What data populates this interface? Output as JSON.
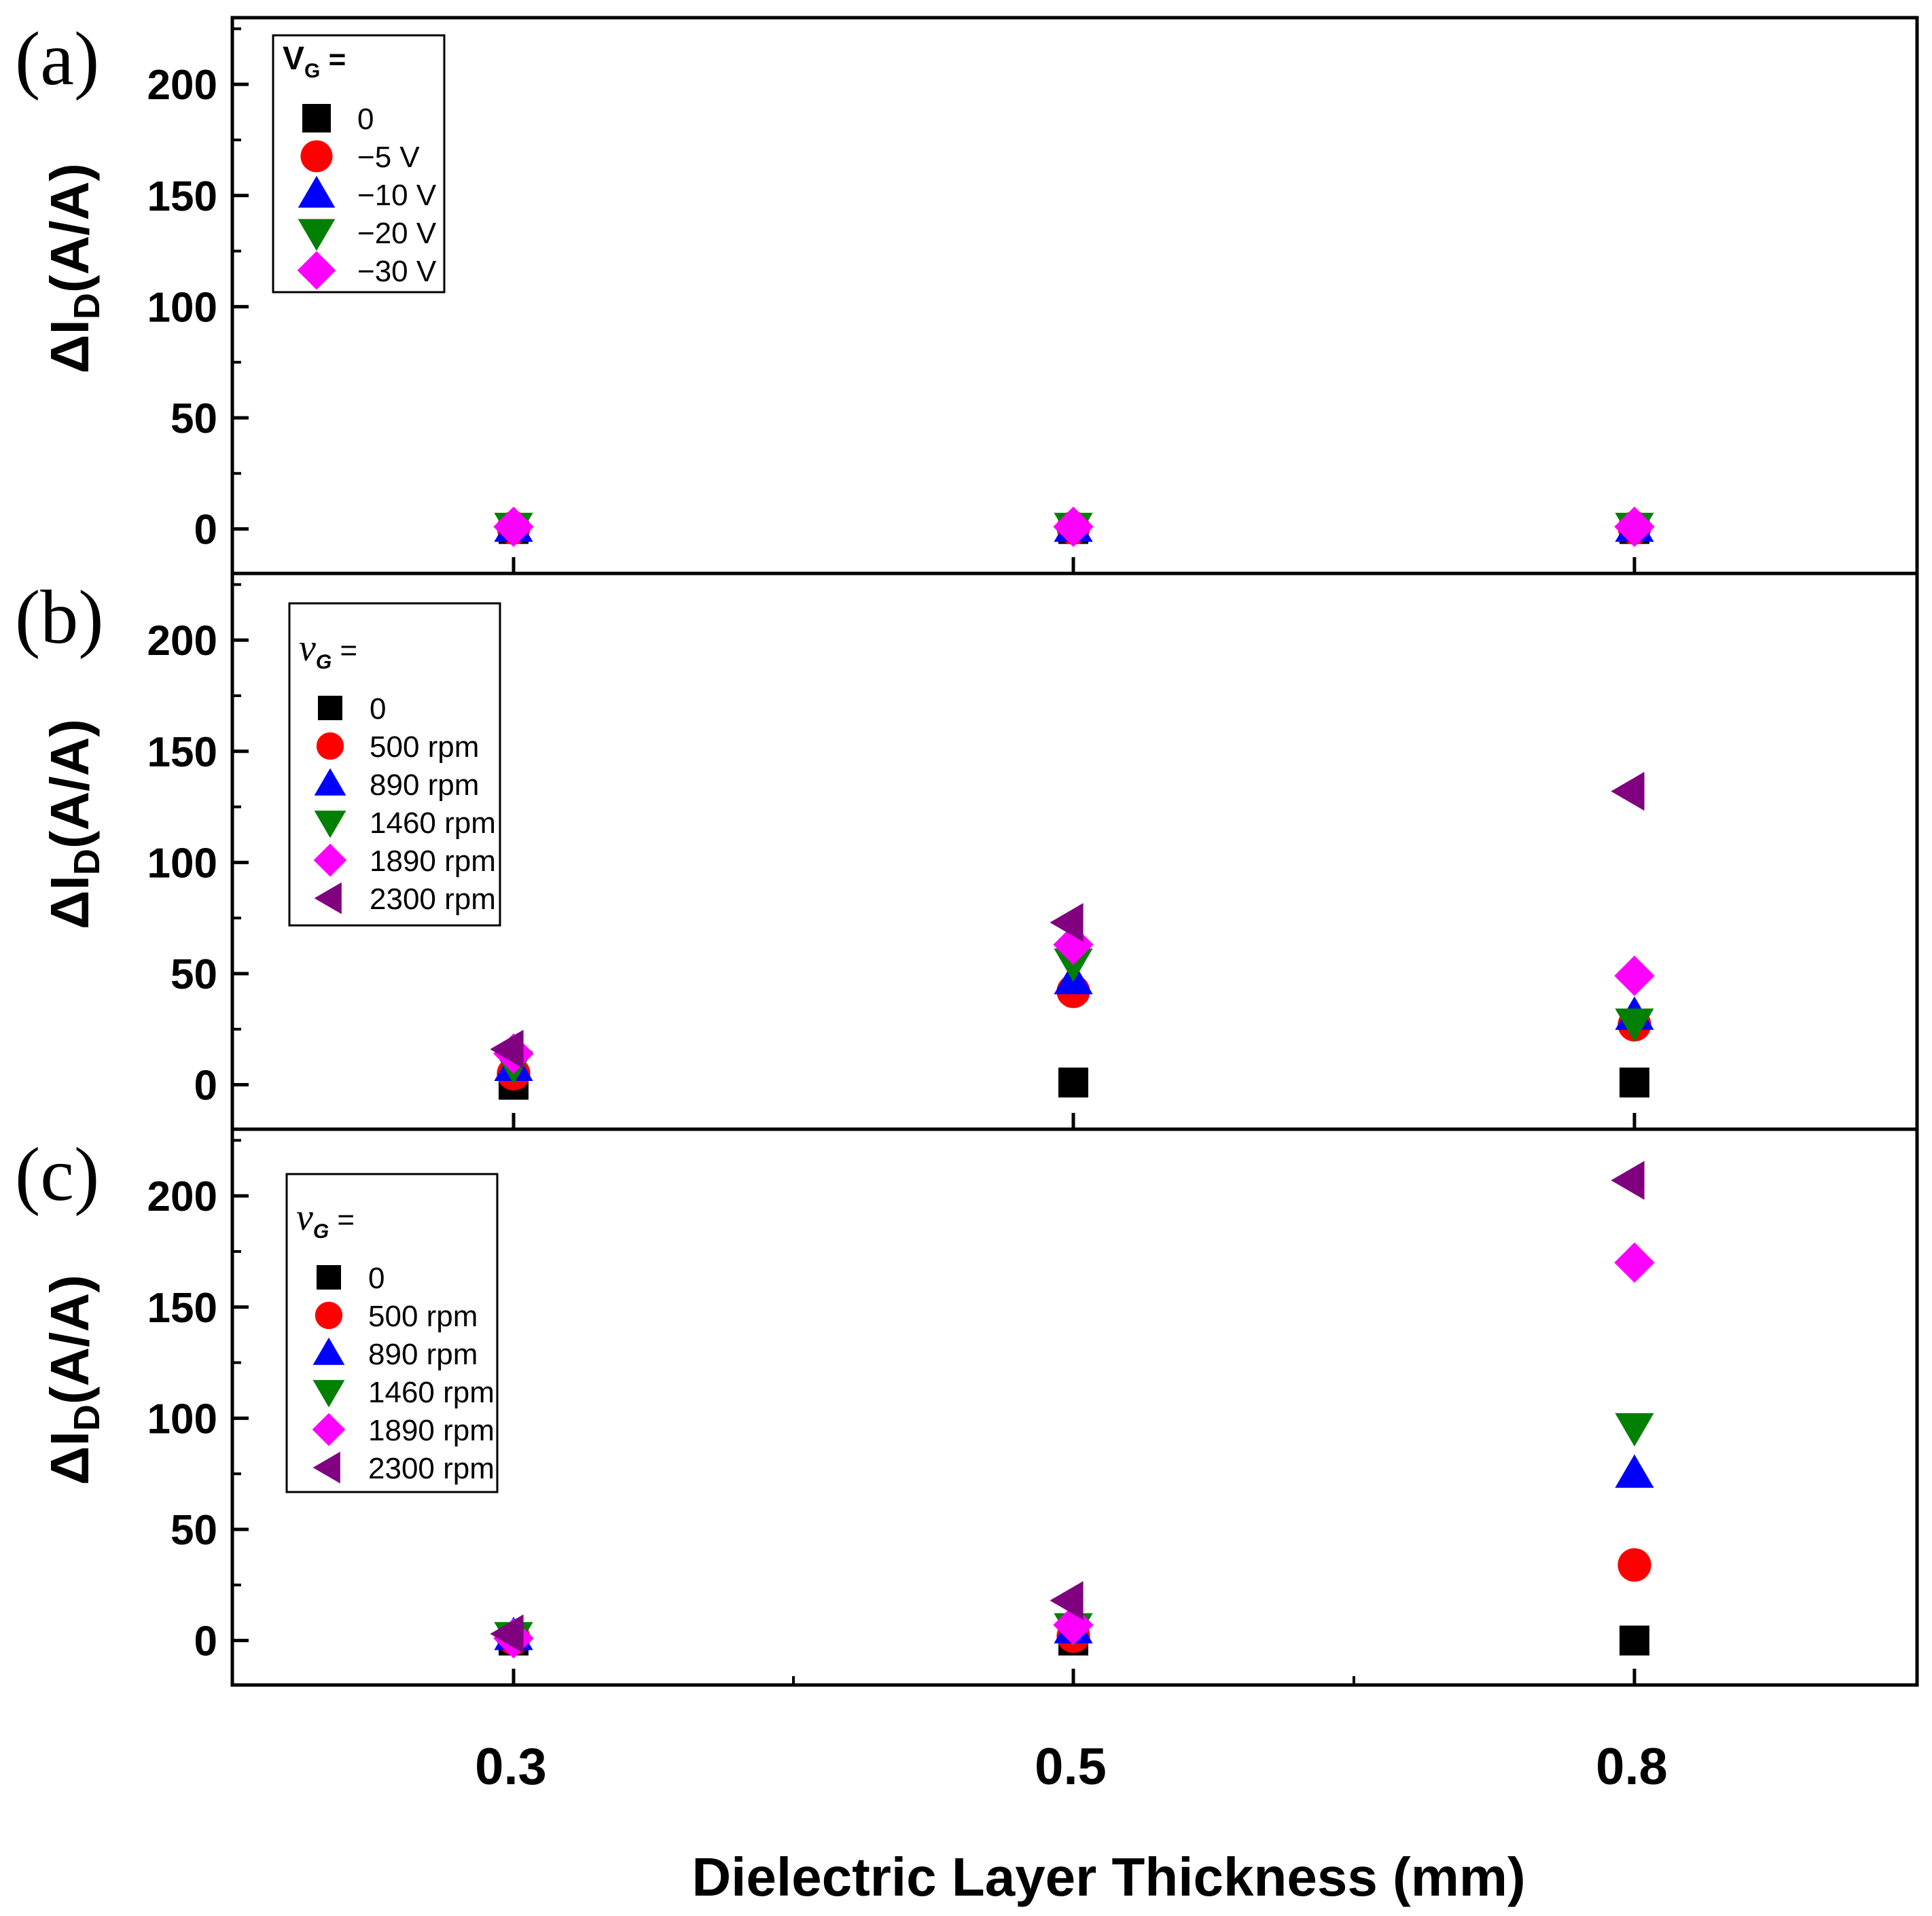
{
  "chart_data": [
    {
      "panel": "(a)",
      "type": "scatter",
      "xlabel": "",
      "ylabel": "ΔI",
      "ylabel_sub": "D",
      "ylabel_unit": "(A/A)",
      "ylim": [
        -20,
        230
      ],
      "yticks": [
        0,
        50,
        100,
        150,
        200
      ],
      "ytick_labels": [
        "0",
        "50",
        "100",
        "150",
        "200"
      ],
      "categories": [
        "0.3",
        "0.5",
        "0.8"
      ],
      "legend": {
        "title_main": "V",
        "title_sub": "G",
        "title_suffix": " =",
        "title_style": "upright",
        "placement": "top-left"
      },
      "series": [
        {
          "name": "0",
          "marker": "square",
          "color": "#000000",
          "values": [
            0,
            0,
            0
          ]
        },
        {
          "name": "−5 V",
          "marker": "circle",
          "color": "#ff0000",
          "values": [
            0.5,
            0.5,
            0.5
          ]
        },
        {
          "name": "−10 V",
          "marker": "triangle-up",
          "color": "#0000ff",
          "values": [
            0.5,
            0.5,
            0.5
          ]
        },
        {
          "name": "−20 V",
          "marker": "triangle-down",
          "color": "#008000",
          "values": [
            1,
            1,
            1
          ]
        },
        {
          "name": "−30 V",
          "marker": "diamond",
          "color": "#ff00ff",
          "values": [
            1,
            1,
            1
          ]
        }
      ]
    },
    {
      "panel": "(b)",
      "type": "scatter",
      "xlabel": "",
      "ylabel": "ΔI",
      "ylabel_sub": "D",
      "ylabel_unit": "(A/A)",
      "ylim": [
        -20,
        230
      ],
      "yticks": [
        0,
        50,
        100,
        150,
        200
      ],
      "ytick_labels": [
        "0",
        "50",
        "100",
        "150",
        "200"
      ],
      "categories": [
        "0.3",
        "0.5",
        "0.8"
      ],
      "legend": {
        "title_main": "v",
        "title_sub": "G",
        "title_suffix": " =",
        "title_style": "italic",
        "placement": "top-left"
      },
      "series": [
        {
          "name": "0",
          "marker": "square",
          "color": "#000000",
          "values": [
            0,
            1,
            1
          ]
        },
        {
          "name": "500 rpm",
          "marker": "circle",
          "color": "#ff0000",
          "values": [
            5,
            42,
            27
          ]
        },
        {
          "name": "890 rpm",
          "marker": "triangle-up",
          "color": "#0000ff",
          "values": [
            8,
            47,
            31
          ]
        },
        {
          "name": "1460 rpm",
          "marker": "triangle-down",
          "color": "#008000",
          "values": [
            9,
            55,
            28
          ]
        },
        {
          "name": "1890 rpm",
          "marker": "diamond",
          "color": "#ff00ff",
          "values": [
            14,
            63,
            49
          ]
        },
        {
          "name": "2300 rpm",
          "marker": "triangle-left",
          "color": "#800080",
          "values": [
            16,
            73,
            132
          ]
        }
      ]
    },
    {
      "panel": "(c)",
      "type": "scatter",
      "xlabel": "Dielectric Layer Thickness (mm)",
      "ylabel": "ΔI",
      "ylabel_sub": "D",
      "ylabel_unit": "(A/A)",
      "ylim": [
        -20,
        230
      ],
      "yticks": [
        0,
        50,
        100,
        150,
        200
      ],
      "ytick_labels": [
        "0",
        "50",
        "100",
        "150",
        "200"
      ],
      "categories": [
        "0.3",
        "0.5",
        "0.8"
      ],
      "legend": {
        "title_main": "v",
        "title_sub": "G",
        "title_suffix": " =",
        "title_style": "italic",
        "placement": "top-left"
      },
      "series": [
        {
          "name": "0",
          "marker": "square",
          "color": "#000000",
          "values": [
            0,
            0,
            0
          ]
        },
        {
          "name": "500 rpm",
          "marker": "circle",
          "color": "#ff0000",
          "values": [
            1,
            2,
            34
          ]
        },
        {
          "name": "890 rpm",
          "marker": "triangle-up",
          "color": "#0000ff",
          "values": [
            2,
            5,
            75
          ]
        },
        {
          "name": "1460 rpm",
          "marker": "triangle-down",
          "color": "#008000",
          "values": [
            2,
            6,
            96
          ]
        },
        {
          "name": "1890 rpm",
          "marker": "diamond",
          "color": "#ff00ff",
          "values": [
            1,
            7,
            170
          ]
        },
        {
          "name": "2300 rpm",
          "marker": "triangle-left",
          "color": "#800080",
          "values": [
            3,
            18,
            207
          ]
        }
      ]
    }
  ]
}
